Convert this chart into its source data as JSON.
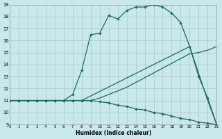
{
  "xlabel": "Humidex (Indice chaleur)",
  "bg_color": "#c8e8ec",
  "grid_color": "#a8c8cc",
  "line_color": "#1a6b5a",
  "xlim": [
    0,
    23
  ],
  "ylim": [
    9,
    19
  ],
  "xticks": [
    0,
    1,
    2,
    3,
    4,
    5,
    6,
    7,
    8,
    9,
    10,
    11,
    12,
    13,
    14,
    15,
    16,
    17,
    18,
    19,
    20,
    21,
    22,
    23
  ],
  "yticks": [
    9,
    10,
    11,
    12,
    13,
    14,
    15,
    16,
    17,
    18,
    19
  ],
  "curves": [
    {
      "x": [
        0,
        1,
        2,
        3,
        4,
        5,
        6,
        7,
        8,
        9,
        10,
        11,
        12,
        13,
        14,
        15,
        16,
        17,
        18,
        19,
        20,
        21,
        22,
        23
      ],
      "y": [
        11,
        11,
        11,
        11,
        11,
        11,
        11,
        11,
        11,
        11,
        10.9,
        10.8,
        10.6,
        10.5,
        10.3,
        10.2,
        10.0,
        9.9,
        9.7,
        9.5,
        9.4,
        9.2,
        9.1,
        9.0
      ],
      "markers": true
    },
    {
      "x": [
        0,
        1,
        2,
        3,
        4,
        5,
        6,
        7,
        8,
        9,
        10,
        11,
        12,
        13,
        14,
        15,
        16,
        17,
        18,
        19,
        20,
        21,
        22,
        23
      ],
      "y": [
        11,
        11,
        11,
        11,
        11,
        11,
        11,
        11,
        11,
        11,
        11.2,
        11.5,
        11.8,
        12.1,
        12.5,
        12.9,
        13.3,
        13.7,
        14.1,
        14.5,
        14.9,
        15.0,
        15.2,
        15.5
      ],
      "markers": false
    },
    {
      "x": [
        0,
        4,
        5,
        6,
        7,
        8,
        20,
        22,
        23
      ],
      "y": [
        11,
        11,
        11,
        11,
        11,
        11,
        15.5,
        11,
        9.0
      ],
      "markers": false
    },
    {
      "x": [
        0,
        1,
        2,
        3,
        4,
        5,
        6,
        7,
        8,
        9,
        10,
        11,
        12,
        13,
        14,
        15,
        16,
        17,
        18,
        19,
        20,
        21,
        22,
        23
      ],
      "y": [
        11,
        11,
        11,
        11,
        11,
        11,
        11,
        11.5,
        13.5,
        16.5,
        16.6,
        18.1,
        17.8,
        18.5,
        18.8,
        18.8,
        19.0,
        18.8,
        18.3,
        17.5,
        15.5,
        13.0,
        11.2,
        9.0
      ],
      "markers": true
    }
  ],
  "marker_size": 2.2,
  "line_width": 0.9
}
